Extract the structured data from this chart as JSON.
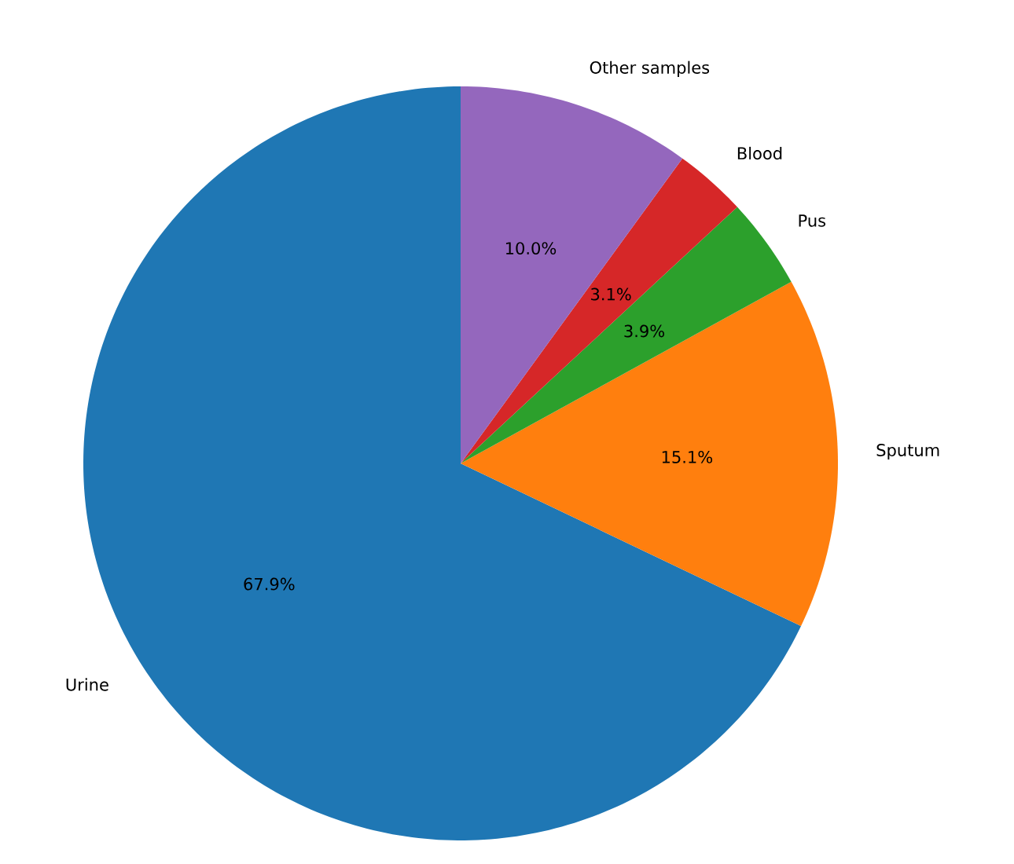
{
  "chart_data": {
    "type": "pie",
    "categories": [
      "Urine",
      "Sputum",
      "Pus",
      "Blood",
      "Other samples"
    ],
    "values": [
      67.9,
      15.1,
      3.9,
      3.1,
      10.0
    ],
    "colors": [
      "#1f77b4",
      "#ff7f0e",
      "#2ca02c",
      "#d62728",
      "#9467bd"
    ],
    "value_labels": [
      "67.9%",
      "15.1%",
      "3.9%",
      "3.1%",
      "10.0%"
    ]
  }
}
